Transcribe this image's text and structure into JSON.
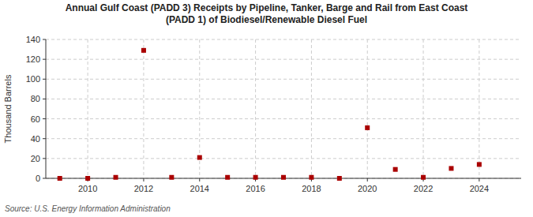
{
  "chart_data": {
    "type": "scatter",
    "title": "Annual Gulf Coast (PADD 3) Receipts by Pipeline, Tanker, Barge and Rail from East Coast\n(PADD 1) of Biodiesel/Renewable Diesel Fuel",
    "ylabel": "Thousand Barrels",
    "source": "Source: U.S. Energy Information Administration",
    "x": [
      2009,
      2010,
      2011,
      2012,
      2013,
      2014,
      2015,
      2016,
      2017,
      2018,
      2019,
      2020,
      2021,
      2022,
      2023,
      2024
    ],
    "values": [
      0,
      0,
      1,
      129,
      1,
      21,
      1,
      1,
      1,
      1,
      0,
      51,
      9,
      1,
      10,
      14
    ],
    "color": "#aa0000",
    "marker": "square",
    "xlim": [
      2008.5,
      2025.5
    ],
    "ylim": [
      0,
      140
    ],
    "xticks": [
      2010,
      2012,
      2014,
      2016,
      2018,
      2020,
      2022,
      2024
    ],
    "yticks": [
      0,
      20,
      40,
      60,
      80,
      100,
      120,
      140
    ],
    "grid": true
  }
}
